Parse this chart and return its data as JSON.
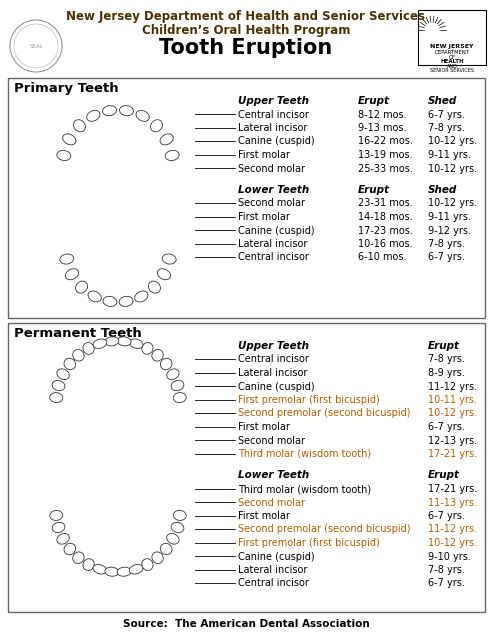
{
  "title_line1": "New Jersey Department of Health and Senior Services",
  "title_line2": "Children’s Oral Health Program",
  "title_line3": "Tooth Eruption",
  "bg_color": "#ffffff",
  "dark_brown": "#4a3000",
  "black": "#000000",
  "orange": "#b85c00",
  "primary_section_title": "Primary Teeth",
  "permanent_section_title": "Permanent Teeth",
  "primary_upper_header": [
    "Upper Teeth",
    "Erupt",
    "Shed"
  ],
  "primary_upper": [
    [
      "Central incisor",
      "8-12 mos.",
      "6-7 yrs."
    ],
    [
      "Lateral incisor",
      "9-13 mos.",
      "7-8 yrs."
    ],
    [
      "Canine (cuspid)",
      "16-22 mos.",
      "10-12 yrs."
    ],
    [
      "First molar",
      "13-19 mos.",
      "9-11 yrs."
    ],
    [
      "Second molar",
      "25-33 mos.",
      "10-12 yrs."
    ]
  ],
  "primary_lower_header": [
    "Lower Teeth",
    "Erupt",
    "Shed"
  ],
  "primary_lower": [
    [
      "Second molar",
      "23-31 mos.",
      "10-12 yrs."
    ],
    [
      "First molar",
      "14-18 mos.",
      "9-11 yrs."
    ],
    [
      "Canine (cuspid)",
      "17-23 mos.",
      "9-12 yrs."
    ],
    [
      "Lateral incisor",
      "10-16 mos.",
      "7-8 yrs."
    ],
    [
      "Central incisor",
      "6-10 mos.",
      "6-7 yrs."
    ]
  ],
  "permanent_upper_header": [
    "Upper Teeth",
    "Erupt"
  ],
  "permanent_upper": [
    [
      "Central incisor",
      "7-8 yrs.",
      false
    ],
    [
      "Lateral incisor",
      "8-9 yrs.",
      false
    ],
    [
      "Canine (cuspid)",
      "11-12 yrs.",
      false
    ],
    [
      "First premolar (first bicuspid)",
      "10-11 yrs.",
      true
    ],
    [
      "Second premolar (second bicuspid)",
      "10-12 yrs.",
      true
    ],
    [
      "First molar",
      "6-7 yrs.",
      false
    ],
    [
      "Second molar",
      "12-13 yrs.",
      false
    ],
    [
      "Third molar (wisdom tooth)",
      "17-21 yrs.",
      true
    ]
  ],
  "permanent_lower_header": [
    "Lower Teeth",
    "Erupt"
  ],
  "permanent_lower": [
    [
      "Third molar (wisdom tooth)",
      "17-21 yrs.",
      false
    ],
    [
      "Second molar",
      "11-13 yrs.",
      true
    ],
    [
      "First molar",
      "6-7 yrs.",
      false
    ],
    [
      "Second premolar (second bicuspid)",
      "11-12 yrs.",
      true
    ],
    [
      "First premolar (first bicuspid)",
      "10-12 yrs.",
      true
    ],
    [
      "Canine (cuspid)",
      "9-10 yrs.",
      false
    ],
    [
      "Lateral incisor",
      "7-8 yrs.",
      false
    ],
    [
      "Central incisor",
      "6-7 yrs.",
      false
    ]
  ],
  "source": "Source:  The American Dental Association"
}
